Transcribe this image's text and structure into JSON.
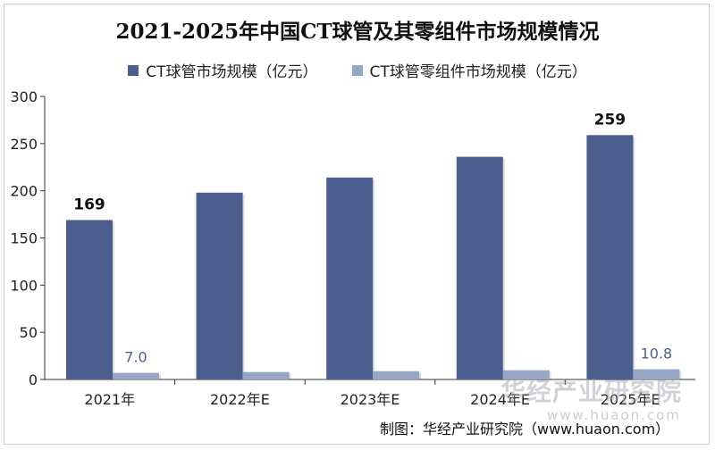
{
  "chart_data": {
    "type": "bar",
    "title": "2021-2025年中国CT球管及其零组件市场规模情况",
    "categories": [
      "2021年",
      "2022年E",
      "2023年E",
      "2024年E",
      "2025年E"
    ],
    "series": [
      {
        "name": "CT球管市场规模（亿元）",
        "values": [
          169,
          198,
          214,
          236,
          259
        ],
        "color": "#4c5e8e"
      },
      {
        "name": "CT球管零组件市场规模（亿元）",
        "values": [
          7.0,
          7.9,
          8.8,
          9.8,
          10.8
        ],
        "color": "#97a6c7"
      }
    ],
    "data_labels": [
      {
        "series": 0,
        "index": 0,
        "text": "169"
      },
      {
        "series": 0,
        "index": 4,
        "text": "259"
      },
      {
        "series": 1,
        "index": 0,
        "text": "7.0"
      },
      {
        "series": 1,
        "index": 4,
        "text": "10.8"
      }
    ],
    "ylim": [
      0,
      300
    ],
    "yticks": [
      0,
      50,
      100,
      150,
      200,
      250,
      300
    ],
    "legend": "top-center",
    "grid": false
  },
  "watermark": {
    "brand": "华经产业研究院",
    "url": "www.huaon.com"
  },
  "source_note": "制图：华经产业研究院（www.huaon.com）"
}
